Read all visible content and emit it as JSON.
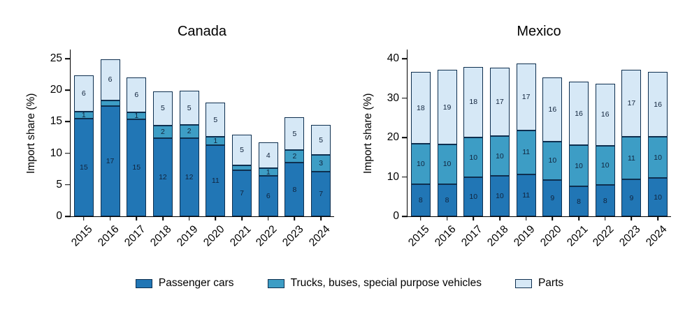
{
  "figure": {
    "edge_color": "#0e2f4f",
    "background": "#ffffff",
    "legend": [
      {
        "label": "Passenger cars",
        "color": "#2176b5"
      },
      {
        "label": "Trucks, buses, special purpose vehicles",
        "color": "#3d9dc5"
      },
      {
        "label": "Parts",
        "color": "#d6e8f6"
      }
    ]
  },
  "chart_data": [
    {
      "type": "bar",
      "stacked": true,
      "title": "Canada",
      "xlabel": "",
      "ylabel": "Import share (%)",
      "ylim": [
        0,
        25
      ],
      "yticks": [
        0,
        5,
        10,
        15,
        20,
        25
      ],
      "grid": false,
      "legend_position": "bottom",
      "categories": [
        "2015",
        "2016",
        "2017",
        "2018",
        "2019",
        "2020",
        "2021",
        "2022",
        "2023",
        "2024"
      ],
      "series": [
        {
          "name": "Passenger cars",
          "color": "#2176b5",
          "values": [
            15.5,
            17.5,
            15.4,
            12.4,
            12.4,
            11.3,
            7.3,
            6.4,
            8.5,
            7.1
          ],
          "labels": [
            "15",
            "17",
            "15",
            "12",
            "12",
            "11",
            "7",
            "6",
            "8",
            "7"
          ]
        },
        {
          "name": "Trucks, buses, special purpose vehicles",
          "color": "#3d9dc5",
          "values": [
            1.1,
            0.9,
            1.1,
            2.0,
            2.1,
            1.3,
            0.8,
            1.2,
            2.0,
            2.6
          ],
          "labels": [
            "1",
            "1",
            "1",
            "2",
            "2",
            "1",
            "1",
            "1",
            "2",
            "3"
          ]
        },
        {
          "name": "Parts",
          "color": "#d6e8f6",
          "values": [
            5.7,
            6.5,
            5.5,
            5.4,
            5.4,
            5.4,
            4.8,
            4.1,
            5.2,
            4.8
          ],
          "labels": [
            "6",
            "6",
            "6",
            "5",
            "5",
            "5",
            "5",
            "4",
            "5",
            "5"
          ]
        }
      ]
    },
    {
      "type": "bar",
      "stacked": true,
      "title": "Mexico",
      "xlabel": "",
      "ylabel": "Import share (%)",
      "ylim": [
        0,
        40
      ],
      "yticks": [
        0,
        10,
        20,
        30,
        40
      ],
      "grid": false,
      "legend_position": "bottom",
      "categories": [
        "2015",
        "2016",
        "2017",
        "2018",
        "2019",
        "2020",
        "2021",
        "2022",
        "2023",
        "2024"
      ],
      "series": [
        {
          "name": "Passenger cars",
          "color": "#2176b5",
          "values": [
            8.2,
            8.2,
            9.9,
            10.2,
            10.7,
            9.2,
            7.6,
            7.9,
            9.3,
            9.7
          ],
          "labels": [
            "8",
            "8",
            "10",
            "10",
            "11",
            "9",
            "8",
            "8",
            "9",
            "10"
          ]
        },
        {
          "name": "Trucks, buses, special purpose vehicles",
          "color": "#3d9dc5",
          "values": [
            10.2,
            10.0,
            10.1,
            10.2,
            11.0,
            9.8,
            10.4,
            10.0,
            10.9,
            10.4
          ],
          "labels": [
            "10",
            "10",
            "10",
            "10",
            "11",
            "10",
            "10",
            "10",
            "11",
            "10"
          ]
        },
        {
          "name": "Parts",
          "color": "#d6e8f6",
          "values": [
            18.2,
            19.0,
            17.9,
            17.3,
            17.1,
            16.2,
            16.1,
            15.8,
            16.9,
            16.5
          ],
          "labels": [
            "18",
            "19",
            "18",
            "17",
            "17",
            "16",
            "16",
            "16",
            "17",
            "16"
          ]
        }
      ]
    }
  ]
}
